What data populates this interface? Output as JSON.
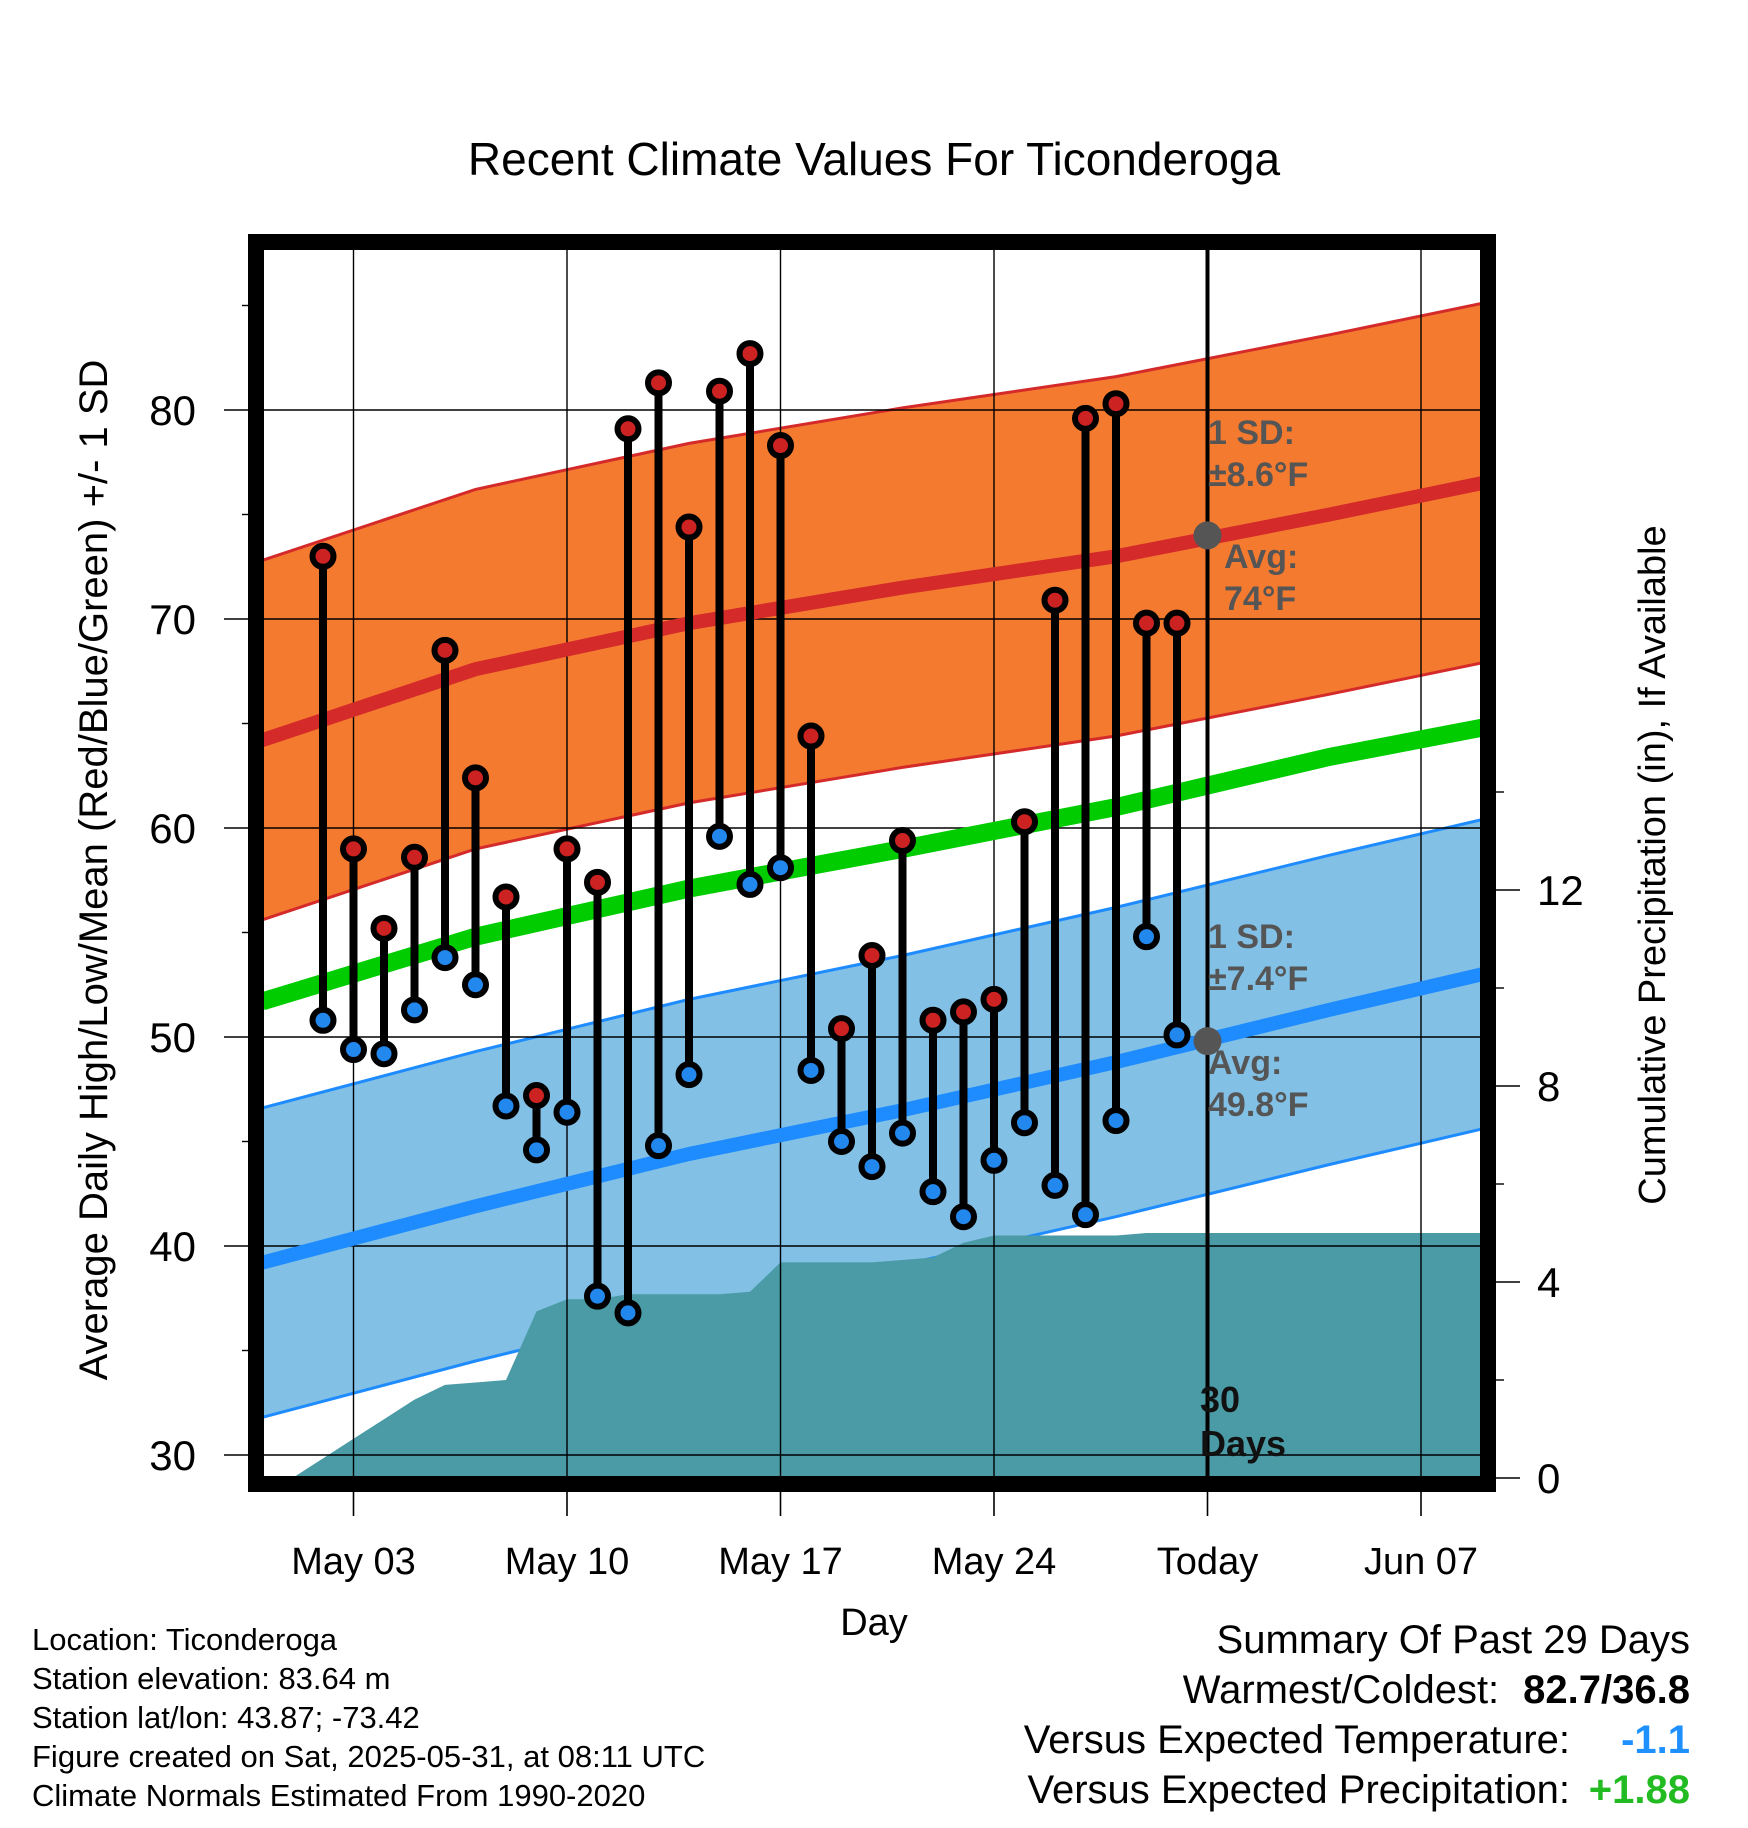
{
  "title": "Recent Climate Values For Ticonderoga",
  "ylabel_left": "Average Daily High/Low/Mean (Red/Blue/Green) +/- 1 SD",
  "ylabel_right": "Cumulative Precipitation (in), If Available",
  "xlabel": "Day",
  "annotations": {
    "high_sd_line1": "1 SD:",
    "high_sd_line2": "±8.6°F",
    "high_avg_line1": "Avg:",
    "high_avg_line2": "74°F",
    "low_sd_line1": "1 SD:",
    "low_sd_line2": "±7.4°F",
    "low_avg_line1": "Avg:",
    "low_avg_line2": "49.8°F",
    "days_line1": "30",
    "days_line2": "Days"
  },
  "footer": {
    "location": "Location: Ticonderoga",
    "elevation": "Station elevation: 83.64 m",
    "latlon": "Station lat/lon: 43.87; -73.42",
    "created": "Figure created on Sat, 2025-05-31, at 08:11 UTC",
    "normals": "Climate Normals Estimated From 1990-2020"
  },
  "summary": {
    "heading": "Summary Of Past 29 Days",
    "warmest_label": "Warmest/Coldest:",
    "warmest_value": "82.7/36.8",
    "temp_label": "Versus Expected Temperature:",
    "temp_value": "-1.1",
    "precip_label": "Versus Expected Precipitation:",
    "precip_value": "+1.88"
  },
  "colors": {
    "high_band": "#f47a30",
    "high_avg": "#d42a2a",
    "low_band": "#82c0e6",
    "low_avg": "#1e8cff",
    "mean_avg": "#00cc00",
    "precip": "#4a9ba6",
    "high_marker": "#cc2222",
    "low_marker": "#2288ee",
    "annotation_text": "#555555",
    "temp_delta": "#1e90ff",
    "precip_delta": "#22bb22"
  },
  "chart_data": {
    "type": "line",
    "title": "Recent Climate Values For Ticonderoga",
    "xlabel": "Day",
    "ylabel": "Average Daily High/Low/Mean (Red/Blue/Green) +/- 1 SD",
    "y2label": "Cumulative Precipitation (in), If Available",
    "x_ticks": [
      "May 03",
      "May 10",
      "May 17",
      "May 24",
      "Today",
      "Jun 07"
    ],
    "x_tick_dates": [
      "2025-05-03",
      "2025-05-10",
      "2025-05-17",
      "2025-05-24",
      "2025-05-31",
      "2025-06-07"
    ],
    "xlim": [
      "2025-04-30",
      "2025-06-09"
    ],
    "ylim": [
      29,
      86
    ],
    "y_ticks": [
      30,
      40,
      50,
      60,
      70,
      80
    ],
    "y2lim": [
      0,
      30
    ],
    "y2_ticks": [
      0,
      4,
      8,
      12
    ],
    "today": "2025-05-31",
    "observed": {
      "dates": [
        "2025-05-02",
        "2025-05-03",
        "2025-05-04",
        "2025-05-05",
        "2025-05-06",
        "2025-05-07",
        "2025-05-08",
        "2025-05-09",
        "2025-05-10",
        "2025-05-11",
        "2025-05-12",
        "2025-05-13",
        "2025-05-14",
        "2025-05-15",
        "2025-05-16",
        "2025-05-17",
        "2025-05-18",
        "2025-05-19",
        "2025-05-20",
        "2025-05-21",
        "2025-05-22",
        "2025-05-23",
        "2025-05-24",
        "2025-05-25",
        "2025-05-26",
        "2025-05-27",
        "2025-05-28",
        "2025-05-29",
        "2025-05-30"
      ],
      "high": [
        73.0,
        59.0,
        55.2,
        58.6,
        68.5,
        62.4,
        56.7,
        47.2,
        59.0,
        57.4,
        79.1,
        81.3,
        74.4,
        80.9,
        82.7,
        78.3,
        64.4,
        50.4,
        53.9,
        59.4,
        50.8,
        51.2,
        51.8,
        60.3,
        70.9,
        79.6,
        80.3,
        69.8,
        69.8
      ],
      "low": [
        50.8,
        49.4,
        49.2,
        51.3,
        53.8,
        52.5,
        46.7,
        44.6,
        46.4,
        37.6,
        36.8,
        44.8,
        48.2,
        59.6,
        57.3,
        58.1,
        48.4,
        45.0,
        43.8,
        45.4,
        42.6,
        41.4,
        44.1,
        45.9,
        42.9,
        41.5,
        46.0,
        54.8,
        50.1
      ]
    },
    "normals": {
      "dates": [
        "2025-04-30",
        "2025-05-07",
        "2025-05-14",
        "2025-05-21",
        "2025-05-28",
        "2025-06-04",
        "2025-06-09"
      ],
      "high_avg": [
        64.2,
        67.6,
        69.8,
        71.5,
        73.0,
        75.0,
        76.5
      ],
      "high_sd": 8.6,
      "low_avg": [
        39.2,
        41.9,
        44.4,
        46.5,
        48.8,
        51.3,
        53.0
      ],
      "low_sd": 7.4,
      "mean_avg": [
        51.7,
        54.8,
        57.1,
        59.0,
        61.0,
        63.4,
        64.8
      ]
    },
    "highlighted_today": {
      "high_avg": 74,
      "low_avg": 49.8
    },
    "cumulative_precip": {
      "dates": [
        "2025-05-01",
        "2025-05-02",
        "2025-05-03",
        "2025-05-04",
        "2025-05-05",
        "2025-05-06",
        "2025-05-07",
        "2025-05-08",
        "2025-05-09",
        "2025-05-10",
        "2025-05-11",
        "2025-05-12",
        "2025-05-13",
        "2025-05-14",
        "2025-05-15",
        "2025-05-16",
        "2025-05-17",
        "2025-05-18",
        "2025-05-19",
        "2025-05-20",
        "2025-05-21",
        "2025-05-22",
        "2025-05-23",
        "2025-05-24",
        "2025-05-25",
        "2025-05-26",
        "2025-05-27",
        "2025-05-28",
        "2025-05-29",
        "2025-05-30",
        "2025-06-09"
      ],
      "values": [
        0.0,
        0.4,
        0.8,
        1.2,
        1.6,
        1.9,
        1.95,
        2.0,
        3.4,
        3.65,
        3.65,
        3.75,
        3.75,
        3.75,
        3.75,
        3.8,
        4.4,
        4.4,
        4.4,
        4.4,
        4.45,
        4.5,
        4.8,
        4.95,
        4.95,
        4.95,
        4.95,
        4.95,
        5.0,
        5.0,
        5.0
      ]
    }
  }
}
